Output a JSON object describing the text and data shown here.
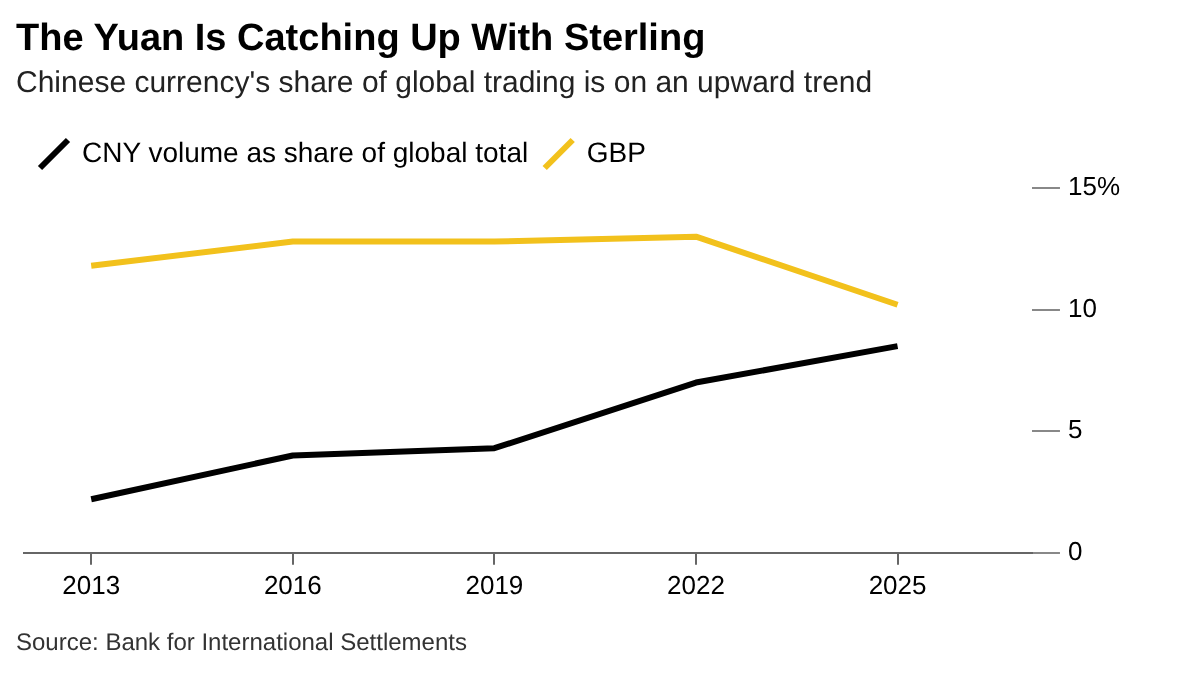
{
  "chart_data": {
    "type": "line",
    "title": "The Yuan Is Catching Up With Sterling",
    "subtitle": "Chinese currency's share of global trading is on an upward trend",
    "x": [
      2013,
      2016,
      2019,
      2022,
      2025
    ],
    "xlim": [
      2012,
      2027
    ],
    "xticks": [
      2013,
      2016,
      2019,
      2022,
      2025
    ],
    "series": [
      {
        "name": "CNY volume as share of global total",
        "color": "#000000",
        "values": [
          2.2,
          4.0,
          4.3,
          7.0,
          8.5
        ]
      },
      {
        "name": "GBP",
        "color": "#f2c11c",
        "values": [
          11.8,
          12.8,
          12.8,
          13.0,
          10.2
        ]
      }
    ],
    "ylim": [
      0,
      15
    ],
    "yticks": [
      0,
      5,
      10,
      {
        "value": 15,
        "label": "15%"
      }
    ],
    "grid": false,
    "legend": "top left",
    "marker": "none",
    "line_style": "solid",
    "annotations": [
      "Source: Bank for International Settlements"
    ]
  }
}
